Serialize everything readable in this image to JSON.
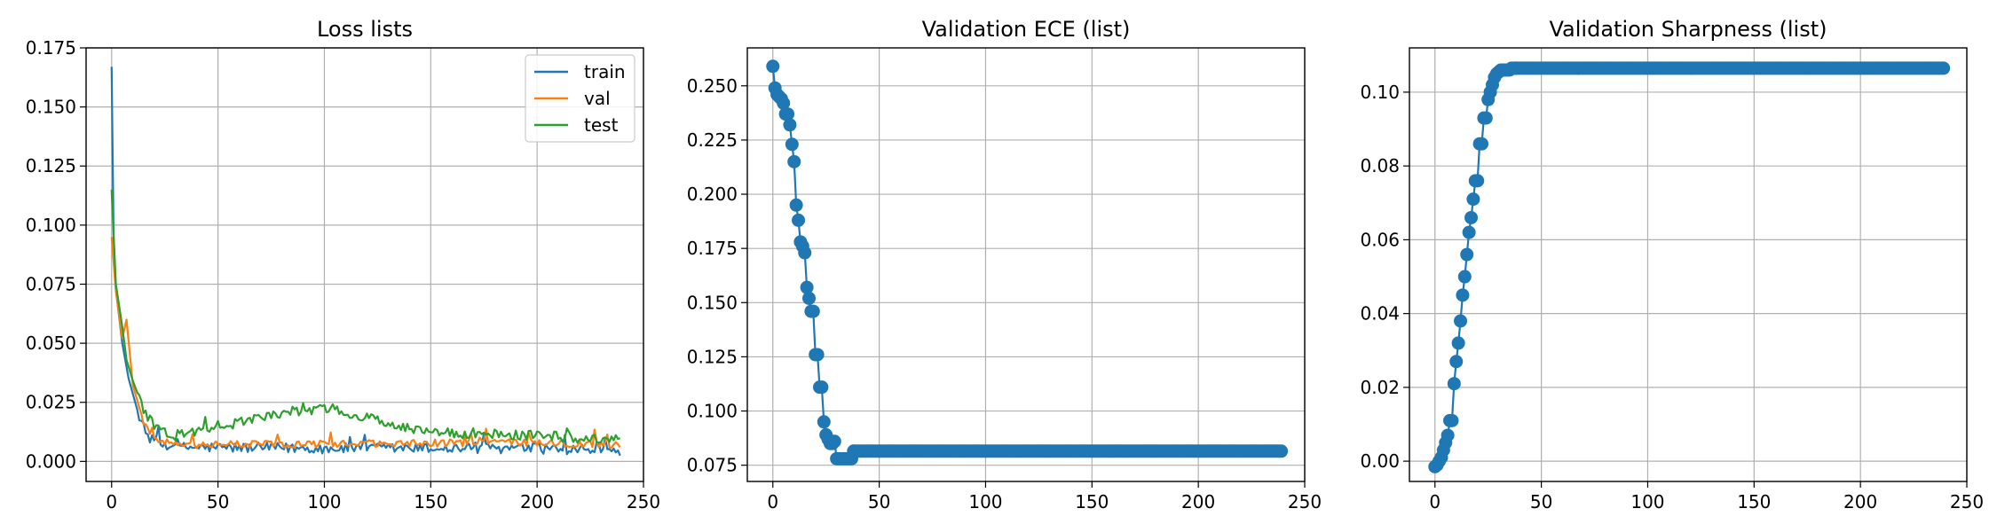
{
  "chart_data": [
    {
      "type": "line",
      "title": "Loss lists",
      "xlabel": "",
      "ylabel": "",
      "xlim": [
        -12,
        250
      ],
      "ylim": [
        -0.0085,
        0.175
      ],
      "xticks": [
        0,
        50,
        100,
        150,
        200,
        250
      ],
      "yticks": [
        0.0,
        0.025,
        0.05,
        0.075,
        0.1,
        0.125,
        0.15,
        0.175
      ],
      "xtick_labels": [
        "0",
        "50",
        "100",
        "150",
        "200",
        "250"
      ],
      "ytick_labels": [
        "0.000",
        "0.025",
        "0.050",
        "0.075",
        "0.100",
        "0.125",
        "0.150",
        "0.175"
      ],
      "grid": true,
      "legend": "top-right",
      "n_points": 240,
      "series": [
        {
          "name": "train",
          "color": "#1f77b4",
          "shape": {
            "start": 0.167,
            "mid": 0.025,
            "knee": 18,
            "floor": 0.0055,
            "noise": 0.0022
          },
          "points": [
            [
              0,
              0.167
            ],
            [
              1,
              0.09
            ],
            [
              2,
              0.073
            ],
            [
              5,
              0.05
            ],
            [
              8,
              0.035
            ],
            [
              12,
              0.022
            ],
            [
              16,
              0.012
            ],
            [
              20,
              0.008
            ],
            [
              30,
              0.006
            ],
            [
              100,
              0.0055
            ],
            [
              200,
              0.0055
            ],
            [
              239,
              0.0045
            ]
          ]
        },
        {
          "name": "val",
          "color": "#ff7f0e",
          "shape": {
            "start": 0.095,
            "mid": 0.03,
            "knee": 18,
            "floor": 0.0075,
            "noise": 0.0015
          },
          "points": [
            [
              0,
              0.095
            ],
            [
              2,
              0.072
            ],
            [
              5,
              0.052
            ],
            [
              7,
              0.06
            ],
            [
              10,
              0.032
            ],
            [
              15,
              0.017
            ],
            [
              20,
              0.009
            ],
            [
              30,
              0.007
            ],
            [
              100,
              0.0075
            ],
            [
              200,
              0.008
            ],
            [
              239,
              0.007
            ]
          ]
        },
        {
          "name": "test",
          "color": "#2ca02c",
          "shape": {
            "start": 0.115,
            "mid": 0.035,
            "knee": 18,
            "floor": 0.011,
            "noise": 0.0022
          },
          "points": [
            [
              0,
              0.115
            ],
            [
              2,
              0.075
            ],
            [
              5,
              0.057
            ],
            [
              7,
              0.043
            ],
            [
              10,
              0.034
            ],
            [
              15,
              0.022
            ],
            [
              20,
              0.015
            ],
            [
              30,
              0.011
            ],
            [
              83,
              0.021
            ],
            [
              105,
              0.022
            ],
            [
              150,
              0.012
            ],
            [
              200,
              0.011
            ],
            [
              239,
              0.009
            ]
          ]
        }
      ]
    },
    {
      "type": "line",
      "title": "Validation ECE (list)",
      "xlabel": "",
      "ylabel": "",
      "xlim": [
        -12,
        250
      ],
      "ylim": [
        0.0675,
        0.2675
      ],
      "xticks": [
        0,
        50,
        100,
        150,
        200,
        250
      ],
      "yticks": [
        0.075,
        0.1,
        0.125,
        0.15,
        0.175,
        0.2,
        0.225,
        0.25
      ],
      "xtick_labels": [
        "0",
        "50",
        "100",
        "150",
        "200",
        "250"
      ],
      "ytick_labels": [
        "0.075",
        "0.100",
        "0.125",
        "0.150",
        "0.175",
        "0.200",
        "0.225",
        "0.250"
      ],
      "grid": true,
      "markers": true,
      "series": [
        {
          "color": "#1f77b4",
          "x": [
            0,
            1,
            2,
            3,
            4,
            5,
            6,
            7,
            8,
            9,
            10,
            11,
            12,
            13,
            14,
            15,
            16,
            17,
            18,
            19,
            20,
            21,
            22,
            23,
            24,
            25,
            26,
            27,
            28,
            29,
            30,
            31,
            32,
            33,
            34,
            35,
            36,
            37,
            38,
            239
          ],
          "values": [
            0.259,
            0.249,
            0.246,
            0.245,
            0.244,
            0.242,
            0.237,
            0.237,
            0.232,
            0.223,
            0.215,
            0.195,
            0.188,
            0.178,
            0.176,
            0.173,
            0.157,
            0.152,
            0.146,
            0.146,
            0.126,
            0.126,
            0.111,
            0.111,
            0.095,
            0.089,
            0.087,
            0.085,
            0.085,
            0.086,
            0.078,
            0.078,
            0.078,
            0.078,
            0.078,
            0.078,
            0.078,
            0.078,
            0.0815,
            0.0815
          ],
          "plateau": {
            "from": 38,
            "to": 239,
            "value": 0.0815
          }
        }
      ]
    },
    {
      "type": "line",
      "title": "Validation Sharpness (list)",
      "xlabel": "",
      "ylabel": "",
      "xlim": [
        -12,
        250
      ],
      "ylim": [
        -0.0055,
        0.112
      ],
      "xticks": [
        0,
        50,
        100,
        150,
        200,
        250
      ],
      "yticks": [
        0.0,
        0.02,
        0.04,
        0.06,
        0.08,
        0.1
      ],
      "xtick_labels": [
        "0",
        "50",
        "100",
        "150",
        "200",
        "250"
      ],
      "ytick_labels": [
        "0.00",
        "0.02",
        "0.04",
        "0.06",
        "0.08",
        "0.10"
      ],
      "grid": true,
      "markers": true,
      "series": [
        {
          "color": "#1f77b4",
          "x": [
            0,
            1,
            2,
            3,
            4,
            5,
            6,
            7,
            8,
            9,
            10,
            11,
            12,
            13,
            14,
            15,
            16,
            17,
            18,
            19,
            20,
            21,
            22,
            23,
            24,
            25,
            26,
            27,
            28,
            29,
            30,
            31,
            32,
            33,
            34,
            35,
            36,
            37,
            38,
            239
          ],
          "values": [
            -0.0015,
            -0.001,
            0.0,
            0.001,
            0.003,
            0.005,
            0.007,
            0.011,
            0.011,
            0.021,
            0.027,
            0.032,
            0.038,
            0.045,
            0.05,
            0.056,
            0.062,
            0.066,
            0.071,
            0.076,
            0.076,
            0.086,
            0.086,
            0.093,
            0.093,
            0.098,
            0.1,
            0.102,
            0.104,
            0.105,
            0.1055,
            0.106,
            0.106,
            0.106,
            0.106,
            0.106,
            0.1065,
            0.1065,
            0.1065,
            0.1065
          ],
          "plateau": {
            "from": 38,
            "to": 239,
            "value": 0.1065
          }
        }
      ]
    }
  ]
}
